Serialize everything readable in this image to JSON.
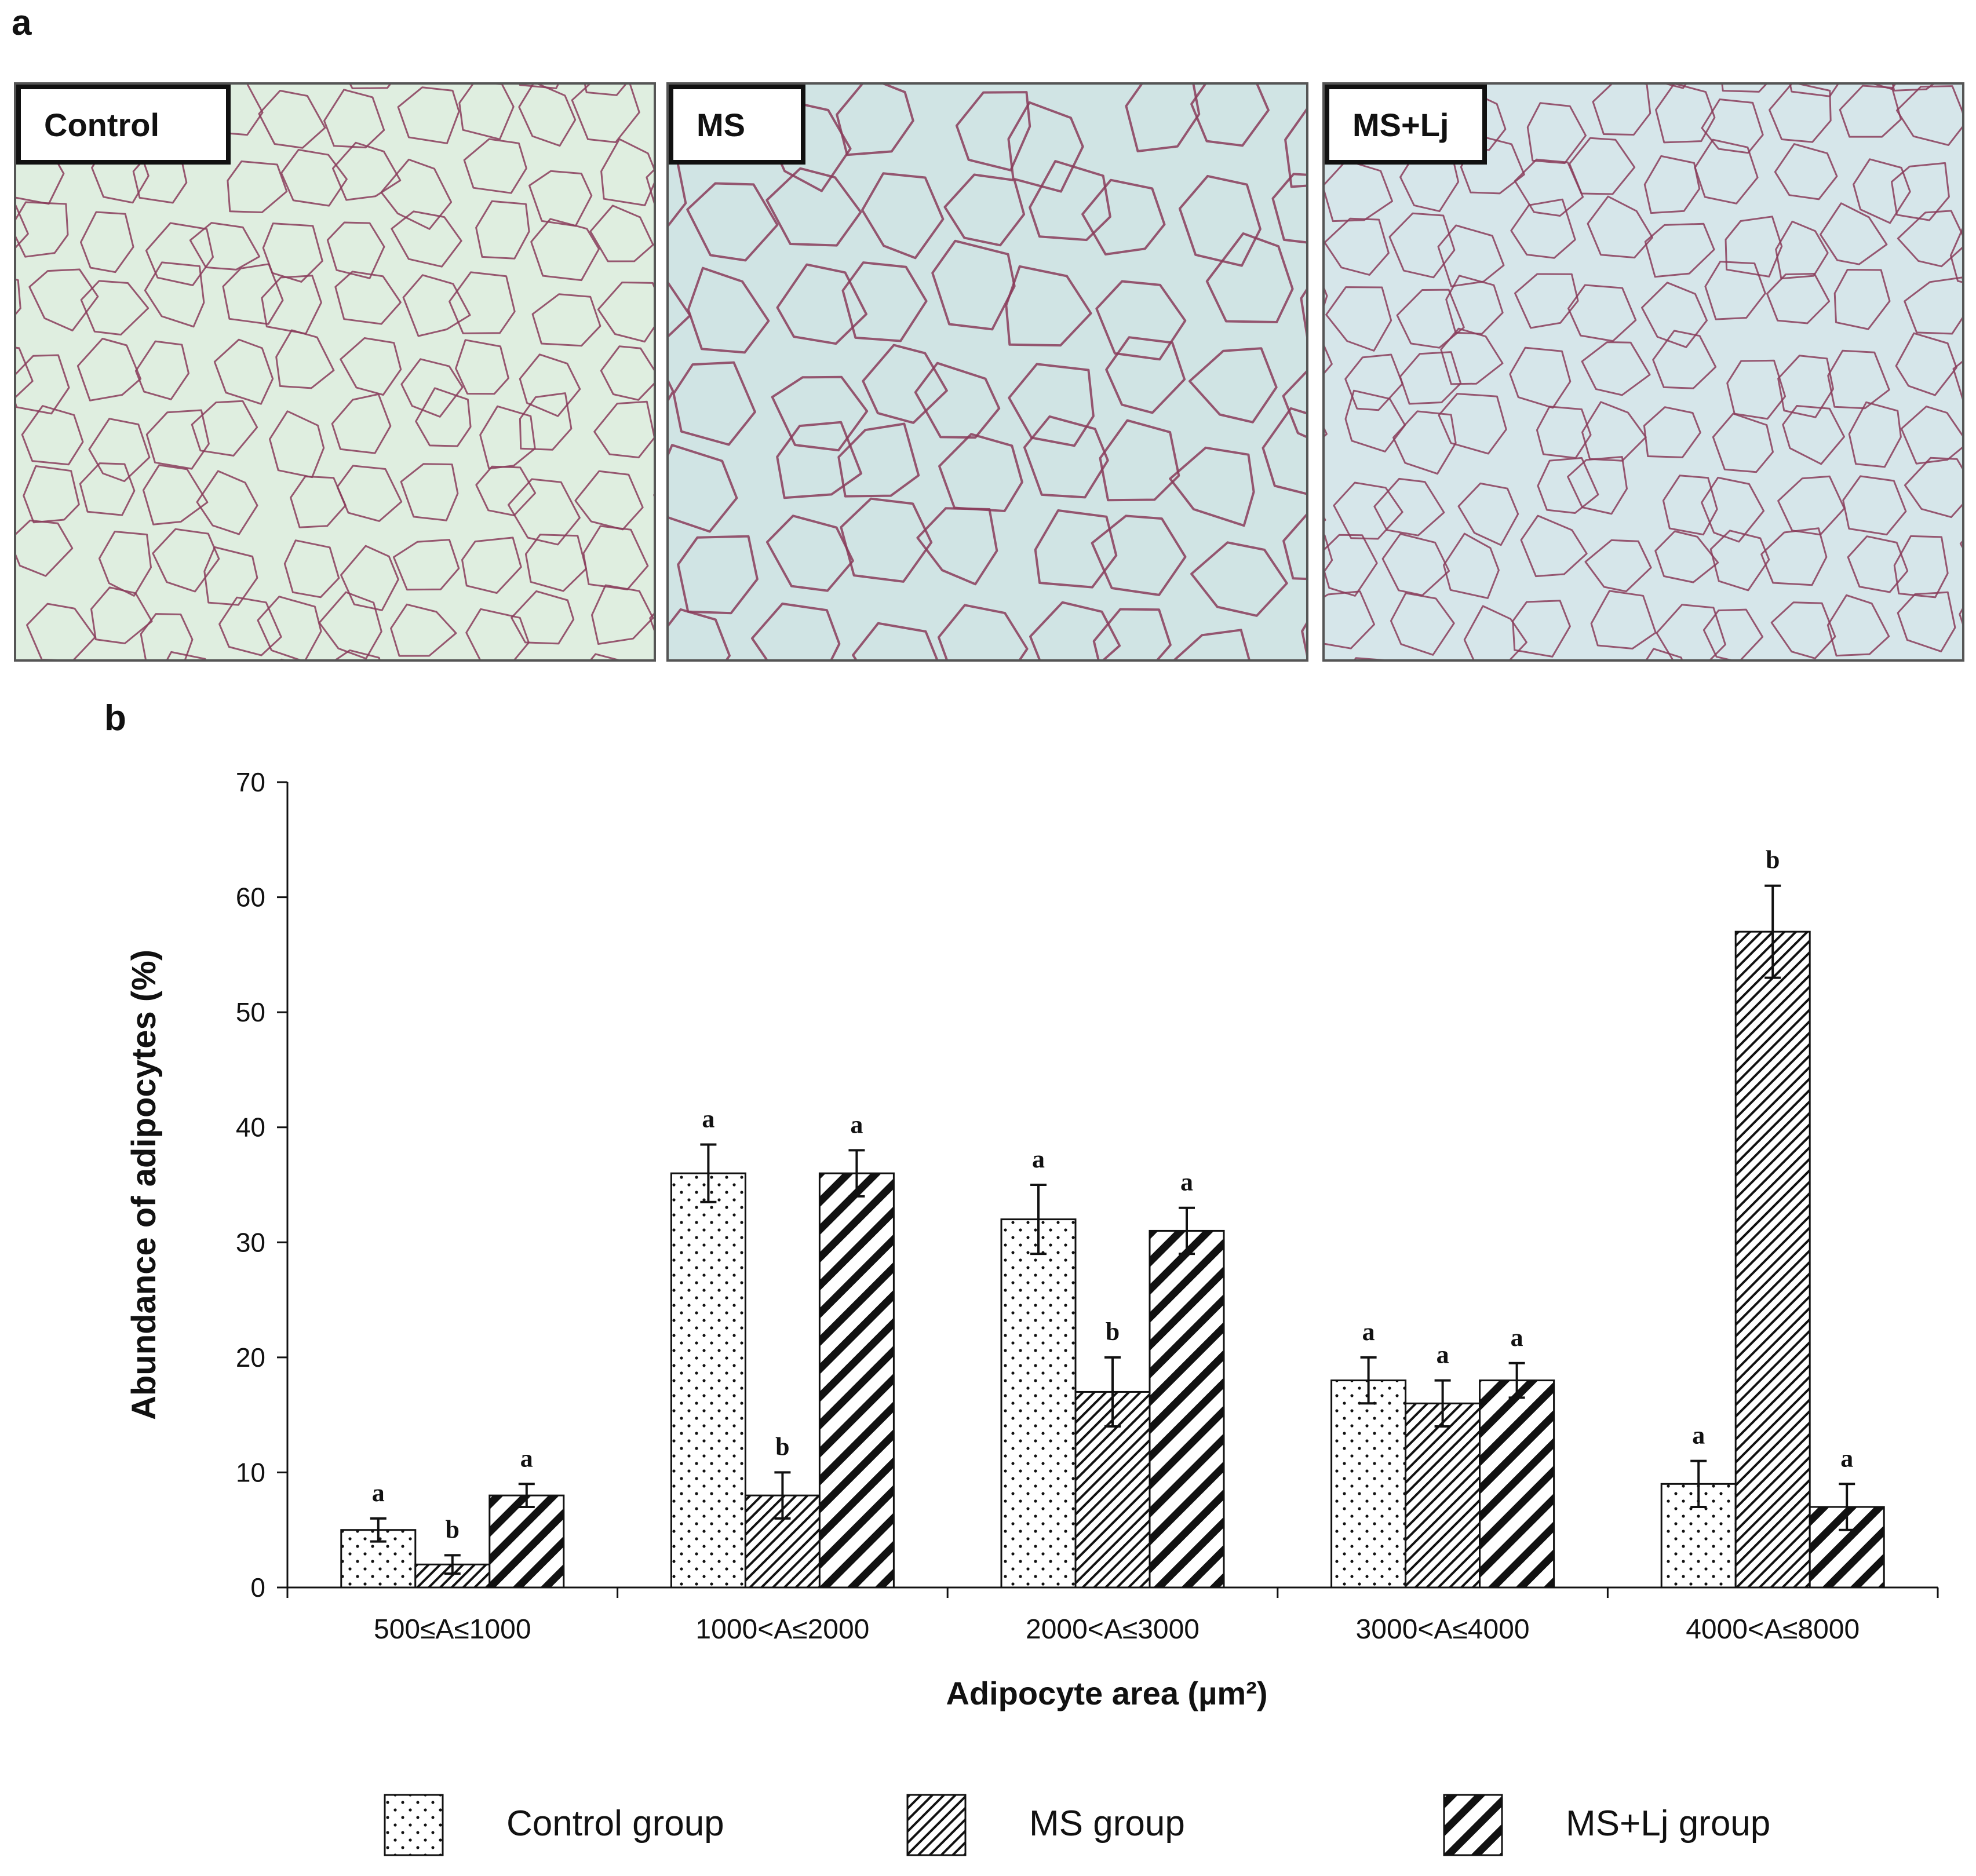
{
  "panel_a_label": "a",
  "panel_b_label": "b",
  "micrographs": [
    {
      "label": "Control"
    },
    {
      "label": "MS"
    },
    {
      "label": "MS+Lj"
    }
  ],
  "colors": {
    "tissue_bg": "#d3e6e4",
    "membrane": "#8a3c5a",
    "bar_stroke": "#111111"
  },
  "chart_data": {
    "type": "bar",
    "categories": [
      "500≤A≤1000",
      "1000<A≤2000",
      "2000<A≤3000",
      "3000<A≤4000",
      "4000<A≤8000"
    ],
    "series": [
      {
        "name": "Control group",
        "pattern": "dots",
        "values": [
          5,
          36,
          32,
          18,
          9
        ],
        "errors": [
          1,
          2.5,
          3,
          2,
          2
        ],
        "letters": [
          "a",
          "a",
          "a",
          "a",
          "a"
        ]
      },
      {
        "name": "MS group",
        "pattern": "fine-hatch",
        "values": [
          2,
          8,
          17,
          16,
          57
        ],
        "errors": [
          0.8,
          2,
          3,
          2,
          4
        ],
        "letters": [
          "b",
          "b",
          "b",
          "a",
          "b"
        ]
      },
      {
        "name": "MS+Lj group",
        "pattern": "bold-hatch",
        "values": [
          8,
          36,
          31,
          18,
          7
        ],
        "errors": [
          1,
          2,
          2,
          1.5,
          2
        ],
        "letters": [
          "a",
          "a",
          "a",
          "a",
          "a"
        ]
      }
    ],
    "xlabel": "Adipocyte area (µm²)",
    "ylabel": "Abundance of adipocytes  (%)",
    "ylim": [
      0,
      70
    ],
    "yticks": [
      0,
      10,
      20,
      30,
      40,
      50,
      60,
      70
    ],
    "legend_position": "bottom"
  }
}
